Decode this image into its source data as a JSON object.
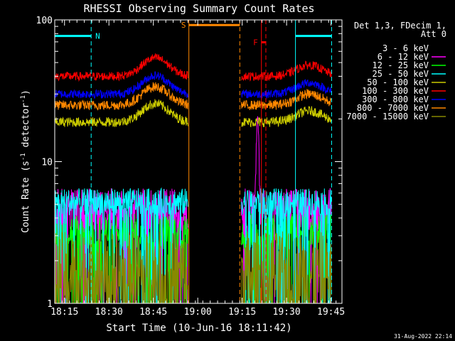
{
  "chart_data": {
    "type": "line",
    "title": "RHESSI Observing Summary Count Rates",
    "xlabel": "Start Time (10-Jun-16 18:11:42)",
    "ylabel_main": "Count Rate (s",
    "ylabel_sup1": "-1",
    "ylabel_mid": " detector",
    "ylabel_sup2": "-1",
    "ylabel_end": ")",
    "yscale": "log",
    "ylim": [
      1,
      100
    ],
    "xlim_minutes": [
      0,
      97
    ],
    "x_ticks": [
      {
        "label": "18:15",
        "min": 3.3
      },
      {
        "label": "18:30",
        "min": 18.3
      },
      {
        "label": "18:45",
        "min": 33.3
      },
      {
        "label": "19:00",
        "min": 48.3
      },
      {
        "label": "19:15",
        "min": 63.3
      },
      {
        "label": "19:30",
        "min": 78.3
      },
      {
        "label": "19:45",
        "min": 93.3
      }
    ],
    "y_ticks": [
      {
        "label": "1",
        "v": 1
      },
      {
        "label": "10",
        "v": 10
      },
      {
        "label": "100",
        "v": 100
      }
    ],
    "legend_title": [
      "Det 1,3, FDecim 1,",
      "Att 0"
    ],
    "legend_position": "right",
    "series": [
      {
        "name": "3 - 6 keV",
        "color": "#000000",
        "level": 2.5,
        "noise": 0.55
      },
      {
        "name": "6 - 12 keV",
        "color": "#ff00ff",
        "level": 4.6,
        "noise": 0.35
      },
      {
        "name": "12 - 25 keV",
        "color": "#00ff00",
        "level": 3.2,
        "noise": 0.3
      },
      {
        "name": "25 - 50 keV",
        "color": "#00ffff",
        "level": 5.2,
        "noise": 0.22
      },
      {
        "name": "50 - 100 keV",
        "color": "#cccc00",
        "level": 19,
        "noise": 0.08
      },
      {
        "name": "100 - 300 keV",
        "color": "#ff0000",
        "level": 40,
        "noise": 0.07
      },
      {
        "name": "300 - 800 keV",
        "color": "#0000ff",
        "level": 30,
        "noise": 0.07
      },
      {
        "name": "800 - 7000 keV",
        "color": "#ff8800",
        "level": 25,
        "noise": 0.08
      },
      {
        "name": "7000 - 15000 keV",
        "color": "#888800",
        "level": 1.6,
        "noise": 0.7
      }
    ],
    "data_segments_minutes": [
      [
        0,
        45
      ],
      [
        63,
        93.5
      ]
    ],
    "orbit_hump_center_minutes": [
      [
        34,
        0.35
      ],
      [
        86,
        0.2
      ]
    ],
    "flare_spike": {
      "time_min": 68.5,
      "peak": 16,
      "color": "#ff00ff"
    },
    "flags": [
      {
        "label": "N",
        "color": "#00ffff",
        "start_min": 0,
        "end_min": 12.3,
        "bar_value": 77,
        "label_min": 14.5
      },
      {
        "label": "N",
        "color": "#00ffff",
        "start_min": 81.3,
        "end_min": 93.5,
        "bar_value": 77
      },
      {
        "label": "S",
        "color": "#ff8800",
        "start_min": 45.3,
        "end_min": 62.5,
        "bar_value": 92,
        "label_min": 43.5
      },
      {
        "label": "F",
        "color": "#ff0000",
        "start_min": 69.8,
        "end_min": 71.3,
        "bar_value": 69.5,
        "label_min": 67.8
      }
    ],
    "timestamp": "31-Aug-2022 22:14"
  }
}
